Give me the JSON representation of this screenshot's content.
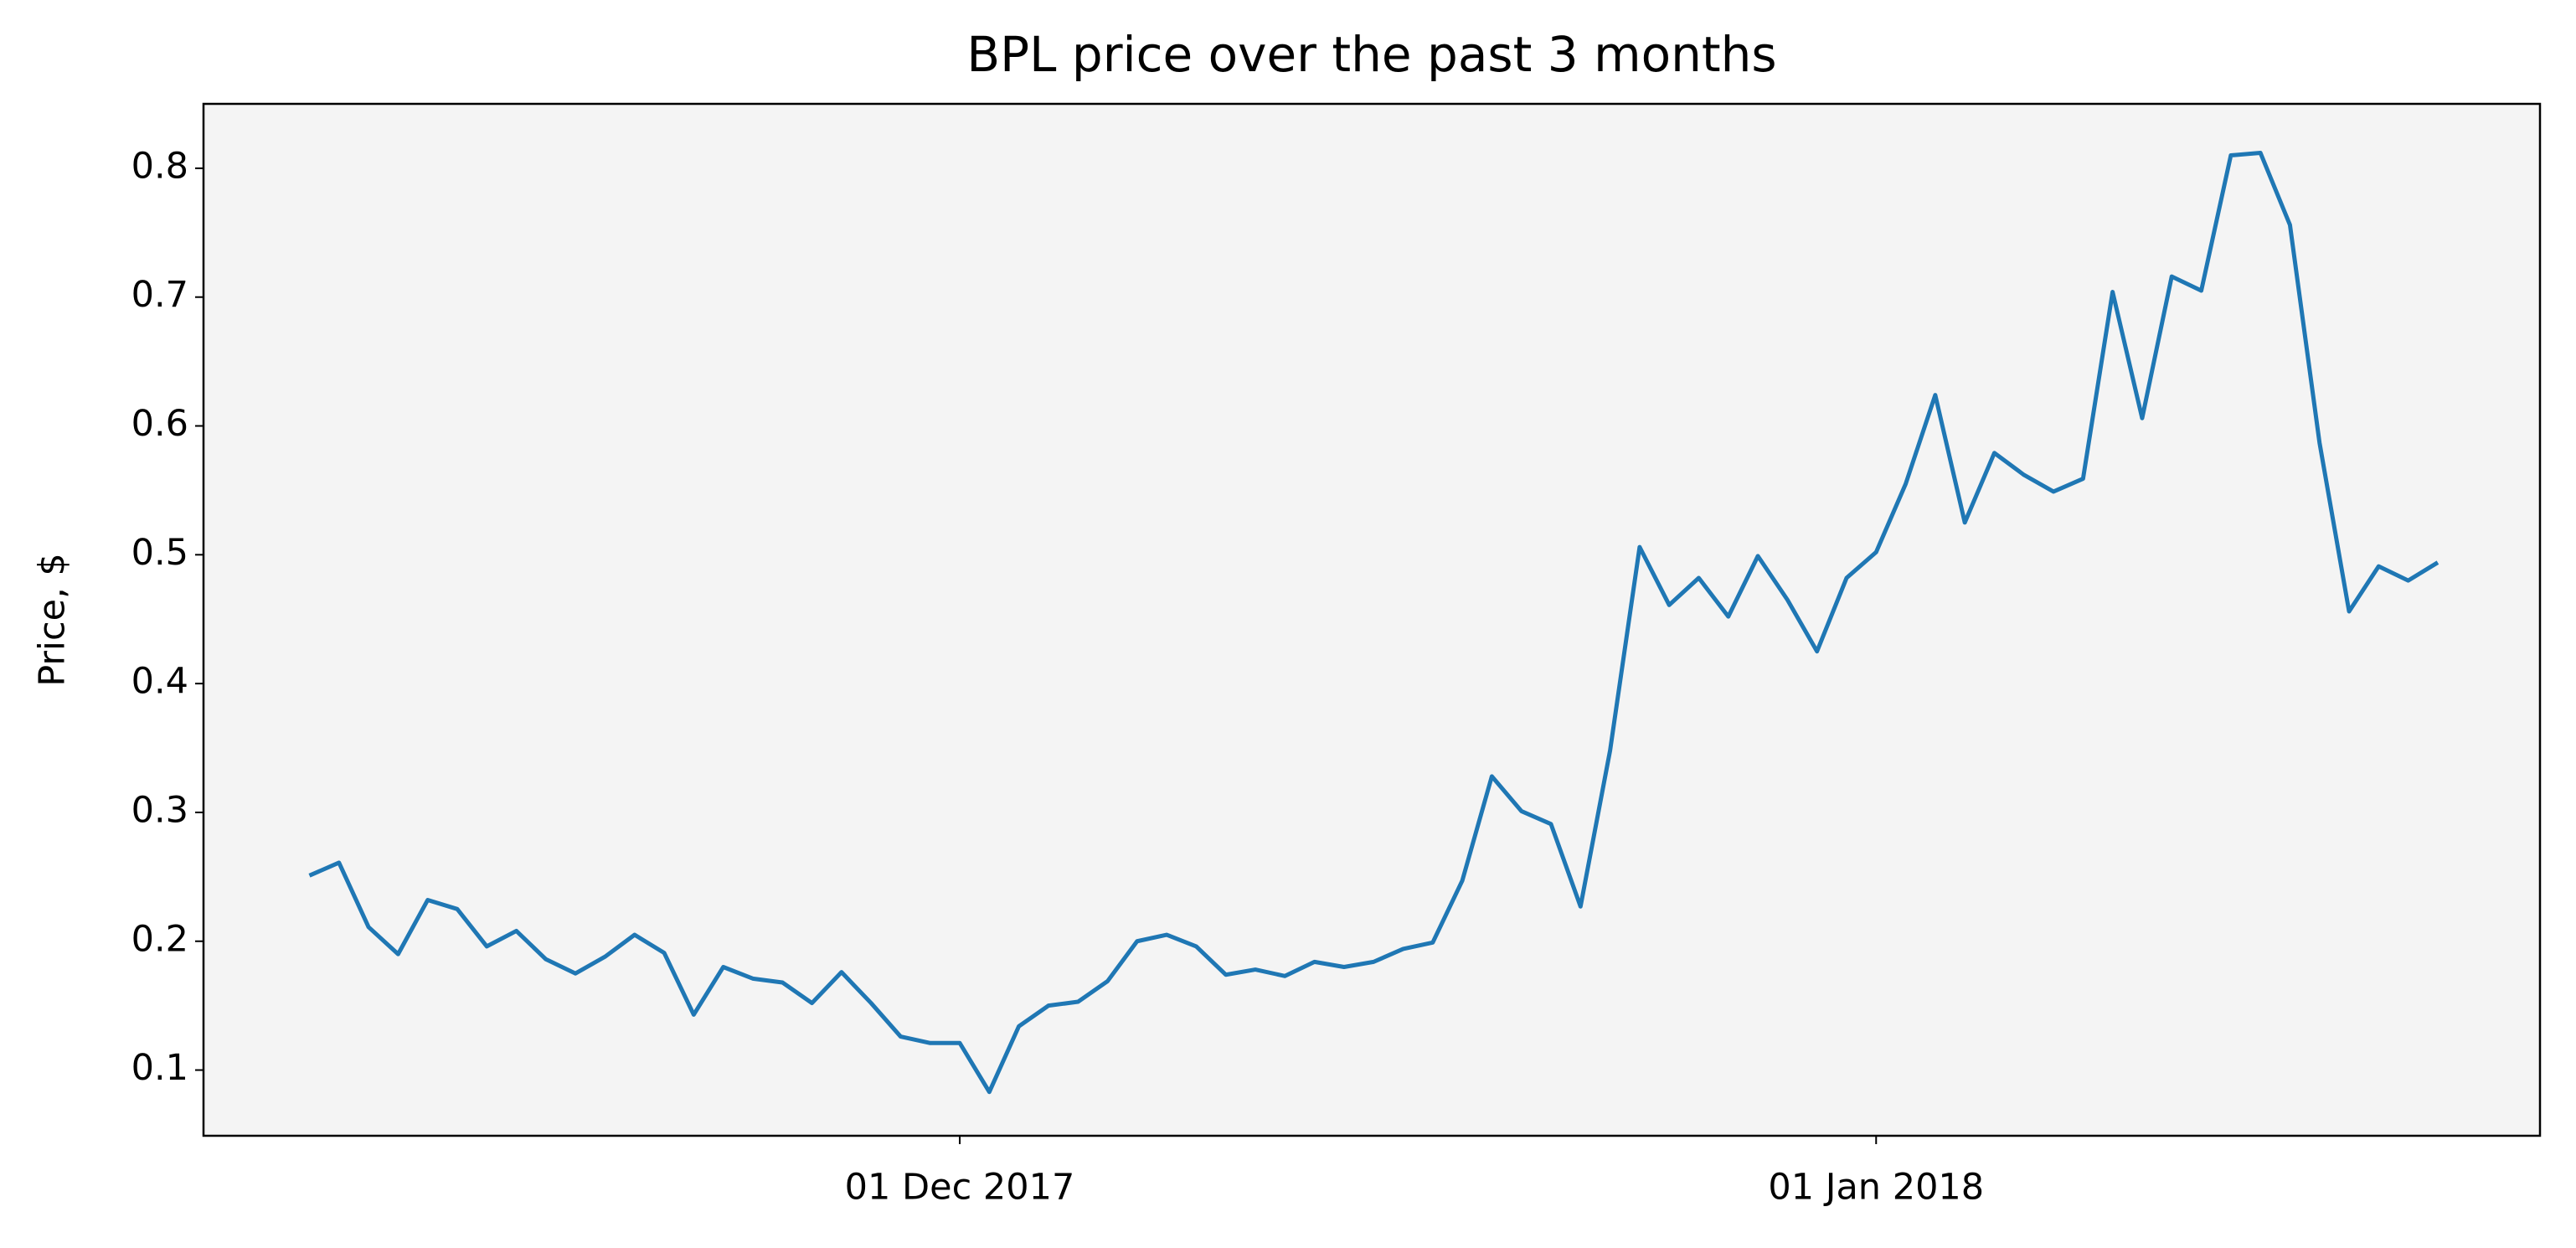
{
  "chart_data": {
    "type": "line",
    "title": "BPL price over the past 3 months",
    "y_label": "Price, $",
    "x": [
      "2017-11-09",
      "2017-11-10",
      "2017-11-11",
      "2017-11-12",
      "2017-11-13",
      "2017-11-14",
      "2017-11-15",
      "2017-11-16",
      "2017-11-17",
      "2017-11-18",
      "2017-11-19",
      "2017-11-20",
      "2017-11-21",
      "2017-11-22",
      "2017-11-23",
      "2017-11-24",
      "2017-11-25",
      "2017-11-26",
      "2017-11-27",
      "2017-11-28",
      "2017-11-29",
      "2017-11-30",
      "2017-12-01",
      "2017-12-02",
      "2017-12-03",
      "2017-12-04",
      "2017-12-05",
      "2017-12-06",
      "2017-12-07",
      "2017-12-08",
      "2017-12-09",
      "2017-12-10",
      "2017-12-11",
      "2017-12-12",
      "2017-12-13",
      "2017-12-14",
      "2017-12-15",
      "2017-12-16",
      "2017-12-17",
      "2017-12-18",
      "2017-12-19",
      "2017-12-20",
      "2017-12-21",
      "2017-12-22",
      "2017-12-23",
      "2017-12-24",
      "2017-12-25",
      "2017-12-26",
      "2017-12-27",
      "2017-12-28",
      "2017-12-29",
      "2017-12-30",
      "2017-12-31",
      "2018-01-01",
      "2018-01-02",
      "2018-01-03",
      "2018-01-04",
      "2018-01-05",
      "2018-01-06",
      "2018-01-07",
      "2018-01-08",
      "2018-01-09",
      "2018-01-10",
      "2018-01-11",
      "2018-01-12",
      "2018-01-13",
      "2018-01-14",
      "2018-01-15",
      "2018-01-16",
      "2018-01-17",
      "2018-01-18",
      "2018-01-19",
      "2018-01-20"
    ],
    "series": [
      {
        "color": "#1f77b4",
        "values": [
          0.251,
          0.261,
          0.211,
          0.19,
          0.232,
          0.225,
          0.196,
          0.208,
          0.186,
          0.175,
          0.188,
          0.205,
          0.191,
          0.143,
          0.18,
          0.171,
          0.168,
          0.152,
          0.176,
          0.152,
          0.126,
          0.121,
          0.121,
          0.083,
          0.134,
          0.15,
          0.153,
          0.169,
          0.2,
          0.205,
          0.196,
          0.174,
          0.178,
          0.173,
          0.184,
          0.18,
          0.184,
          0.194,
          0.199,
          0.247,
          0.328,
          0.301,
          0.291,
          0.227,
          0.348,
          0.506,
          0.461,
          0.482,
          0.452,
          0.499,
          0.465,
          0.425,
          0.482,
          0.502,
          0.555,
          0.624,
          0.525,
          0.579,
          0.562,
          0.549,
          0.559,
          0.704,
          0.606,
          0.716,
          0.705,
          0.81,
          0.812,
          0.756,
          0.587,
          0.456,
          0.491,
          0.48,
          0.494
        ]
      }
    ],
    "xlim": [
      "2017-11-05T10:00Z",
      "2018-01-23T11:00Z"
    ],
    "xticks": [
      {
        "value": "2017-12-01",
        "label": "01 Dec 2017"
      },
      {
        "value": "2018-01-01",
        "label": "01 Jan 2018"
      }
    ],
    "ylim": [
      0.049,
      0.85
    ],
    "yticks": [
      0.1,
      0.2,
      0.3,
      0.4,
      0.5,
      0.6,
      0.7,
      0.8
    ],
    "background": "#f4f4f4"
  }
}
